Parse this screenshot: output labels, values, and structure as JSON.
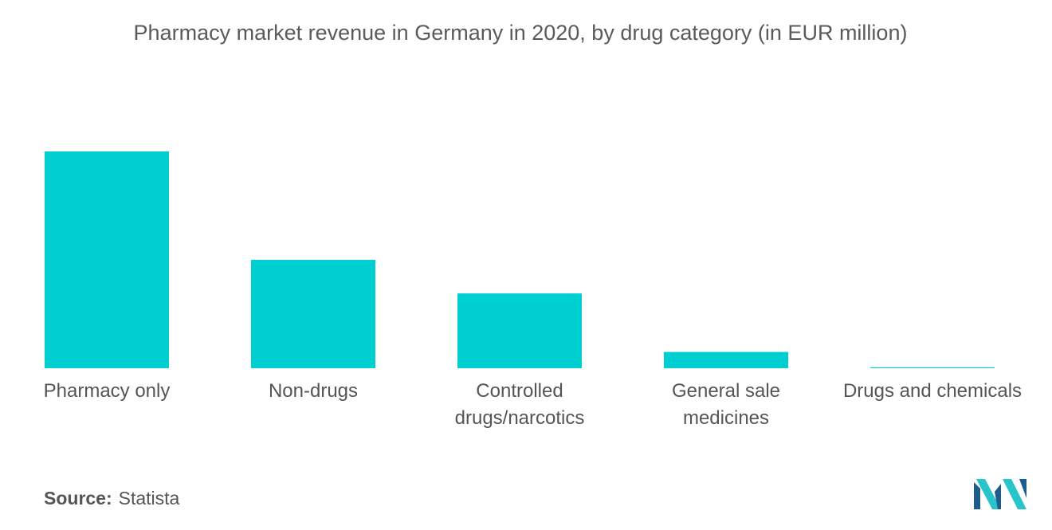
{
  "title": "Pharmacy market revenue in Germany in 2020, by drug category (in EUR million)",
  "source": {
    "label": "Source:",
    "value": "Statista"
  },
  "colors": {
    "bar": "#00cfd1",
    "logo_dark": "#1f5c8a",
    "logo_light": "#27c4cc"
  },
  "chart_data": {
    "type": "bar",
    "categories": [
      "Pharmacy only",
      "Non-drugs",
      "Controlled\ndrugs/narcotics",
      "General sale\nmedicines",
      "Drugs and chemicals"
    ],
    "values": [
      100,
      50,
      34.5,
      7.5,
      0.4
    ],
    "xlabel": "",
    "ylabel": "",
    "ylim": [
      0,
      100
    ],
    "grid": false,
    "legend": "none"
  },
  "logo": {
    "icon": "mordor-intelligence-logo-icon"
  }
}
